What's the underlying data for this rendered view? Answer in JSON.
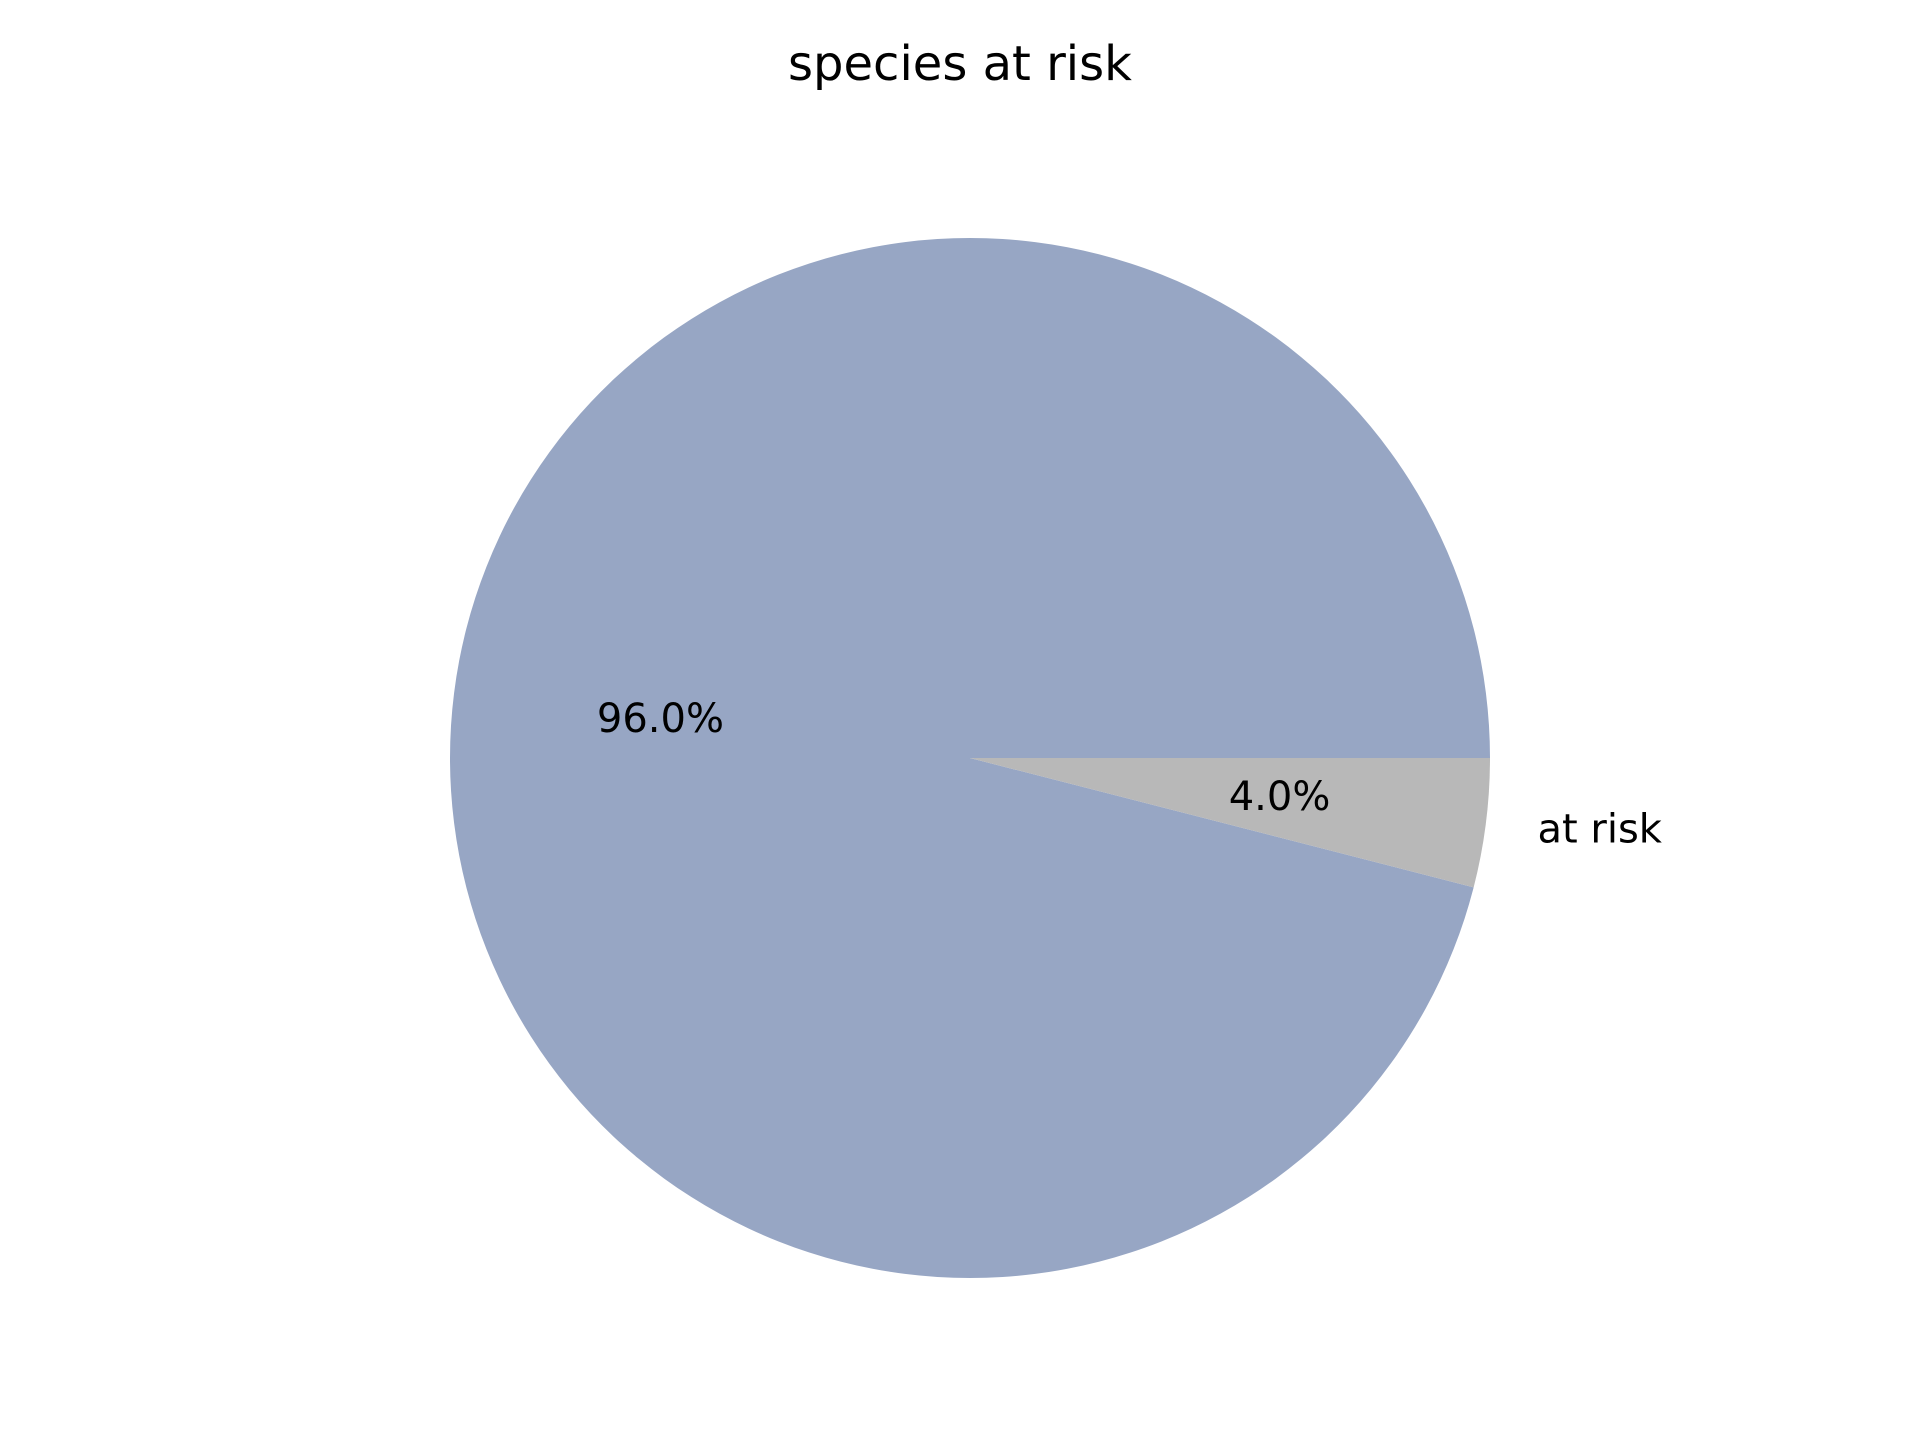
{
  "chart_data": {
    "type": "pie",
    "title": "species at risk",
    "slices": [
      {
        "label": "",
        "value": 96.0,
        "pct_label": "96.0%",
        "color": "#97a6c4"
      },
      {
        "label": "at risk",
        "value": 4.0,
        "pct_label": "4.0%",
        "color": "#b8b8b8"
      }
    ],
    "start_angle_deg": 0,
    "direction": "counterclockwise"
  }
}
